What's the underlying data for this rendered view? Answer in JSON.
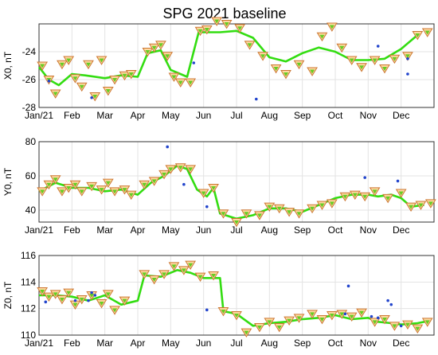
{
  "chart_data": {
    "title": "SPG 2021 baseline",
    "type": "line",
    "x_tick_labels": [
      "Jan/21",
      "Feb",
      "Mar",
      "Apr",
      "May",
      "Jun",
      "Jul",
      "Aug",
      "Sep",
      "Oct",
      "Nov",
      "Dec"
    ],
    "colors": {
      "smooth": "#33dd11",
      "triangle_edge": "#cc7733",
      "triangle_fill": "#ffd9a0",
      "green_fill": "#66cc22",
      "point": "#2244cc"
    },
    "panels": [
      {
        "ylabel": "X0, nT",
        "ylim": [
          -28,
          -22
        ],
        "yticks": [
          -28,
          -26,
          -24
        ],
        "smooth": [
          [
            0,
            -25.1
          ],
          [
            0.3,
            -26.0
          ],
          [
            0.6,
            -26.4
          ],
          [
            1,
            -25.6
          ],
          [
            1.4,
            -25.7
          ],
          [
            2,
            -25.9
          ],
          [
            2.5,
            -25.7
          ],
          [
            3,
            -25.8
          ],
          [
            3.3,
            -24.1
          ],
          [
            3.7,
            -23.9
          ],
          [
            4,
            -25.3
          ],
          [
            4.5,
            -25.8
          ],
          [
            4.85,
            -22.6
          ],
          [
            5.5,
            -22.6
          ],
          [
            6,
            -22.5
          ],
          [
            6.5,
            -23.0
          ],
          [
            7,
            -24.4
          ],
          [
            7.5,
            -24.7
          ],
          [
            8,
            -24.1
          ],
          [
            8.5,
            -23.7
          ],
          [
            9,
            -24.0
          ],
          [
            9.5,
            -24.6
          ],
          [
            10,
            -24.6
          ],
          [
            10.5,
            -24.5
          ],
          [
            11,
            -23.8
          ],
          [
            11.5,
            -22.8
          ]
        ],
        "triangles": [
          [
            0.1,
            -25.0
          ],
          [
            0.3,
            -26.0
          ],
          [
            0.5,
            -27.0
          ],
          [
            0.7,
            -24.9
          ],
          [
            0.9,
            -24.6
          ],
          [
            1.1,
            -25.9
          ],
          [
            1.3,
            -26.5
          ],
          [
            1.5,
            -24.9
          ],
          [
            1.7,
            -27.2
          ],
          [
            1.9,
            -24.6
          ],
          [
            2.1,
            -26.8
          ],
          [
            2.3,
            -26.0
          ],
          [
            2.6,
            -25.7
          ],
          [
            2.8,
            -25.6
          ],
          [
            3.3,
            -24.0
          ],
          [
            3.5,
            -23.7
          ],
          [
            3.7,
            -23.5
          ],
          [
            3.9,
            -24.3
          ],
          [
            4.1,
            -25.8
          ],
          [
            4.3,
            -26.2
          ],
          [
            4.6,
            -26.2
          ],
          [
            4.9,
            -22.5
          ],
          [
            5.1,
            -22.4
          ],
          [
            5.4,
            -21.8
          ],
          [
            5.7,
            -22.0
          ],
          [
            6.1,
            -22.3
          ],
          [
            6.4,
            -23.5
          ],
          [
            6.8,
            -24.3
          ],
          [
            7.2,
            -25.2
          ],
          [
            7.5,
            -25.6
          ],
          [
            7.9,
            -24.9
          ],
          [
            8.3,
            -25.4
          ],
          [
            8.6,
            -22.9
          ],
          [
            8.9,
            -22.2
          ],
          [
            9.2,
            -23.7
          ],
          [
            9.5,
            -24.6
          ],
          [
            9.8,
            -25.1
          ],
          [
            10.2,
            -24.6
          ],
          [
            10.5,
            -25.2
          ],
          [
            10.8,
            -24.5
          ],
          [
            11.2,
            -24.3
          ],
          [
            11.5,
            -22.8
          ],
          [
            11.8,
            -22.6
          ]
        ],
        "points": [
          [
            0.3,
            -26.1
          ],
          [
            1.6,
            -27.3
          ],
          [
            4.7,
            -24.8
          ],
          [
            6.6,
            -27.4
          ],
          [
            10.3,
            -23.6
          ],
          [
            11.2,
            -24.5
          ],
          [
            11.2,
            -25.6
          ]
        ]
      },
      {
        "ylabel": "Y0, nT",
        "ylim": [
          33,
          80
        ],
        "yticks": [
          40,
          60,
          80
        ],
        "smooth": [
          [
            0,
            51
          ],
          [
            0.5,
            56
          ],
          [
            1,
            53
          ],
          [
            1.5,
            53
          ],
          [
            2,
            51
          ],
          [
            2.5,
            52
          ],
          [
            3,
            49
          ],
          [
            3.4,
            56
          ],
          [
            3.8,
            60
          ],
          [
            4.2,
            66
          ],
          [
            4.5,
            64
          ],
          [
            4.8,
            52
          ],
          [
            5.1,
            48
          ],
          [
            5.3,
            53
          ],
          [
            5.5,
            38
          ],
          [
            6,
            35
          ],
          [
            6.5,
            37
          ],
          [
            7,
            41
          ],
          [
            7.5,
            41
          ],
          [
            8,
            39
          ],
          [
            8.5,
            43
          ],
          [
            9,
            47
          ],
          [
            9.5,
            49
          ],
          [
            10,
            49
          ],
          [
            10.3,
            48
          ],
          [
            10.7,
            49
          ],
          [
            11,
            47
          ],
          [
            11.3,
            42
          ],
          [
            11.7,
            43
          ]
        ],
        "triangles": [
          [
            0.1,
            51
          ],
          [
            0.3,
            55
          ],
          [
            0.5,
            58
          ],
          [
            0.7,
            51
          ],
          [
            0.9,
            53
          ],
          [
            1.1,
            55
          ],
          [
            1.3,
            51
          ],
          [
            1.6,
            54
          ],
          [
            1.9,
            52
          ],
          [
            2.1,
            56
          ],
          [
            2.3,
            51
          ],
          [
            2.6,
            52
          ],
          [
            2.8,
            49
          ],
          [
            3.2,
            55
          ],
          [
            3.5,
            57
          ],
          [
            3.8,
            61
          ],
          [
            4.0,
            64
          ],
          [
            4.3,
            65
          ],
          [
            4.6,
            64
          ],
          [
            5.0,
            50
          ],
          [
            5.3,
            53
          ],
          [
            5.6,
            38
          ],
          [
            6.0,
            33
          ],
          [
            6.3,
            38
          ],
          [
            6.7,
            37
          ],
          [
            7.0,
            42
          ],
          [
            7.3,
            41
          ],
          [
            7.6,
            39
          ],
          [
            7.9,
            38
          ],
          [
            8.3,
            41
          ],
          [
            8.6,
            43
          ],
          [
            8.9,
            44
          ],
          [
            9.3,
            48
          ],
          [
            9.6,
            49
          ],
          [
            9.9,
            48
          ],
          [
            10.2,
            51
          ],
          [
            10.6,
            47
          ],
          [
            11.0,
            50
          ],
          [
            11.3,
            42
          ],
          [
            11.6,
            43
          ],
          [
            11.9,
            44
          ]
        ],
        "points": [
          [
            3.9,
            77
          ],
          [
            4.4,
            55
          ],
          [
            5.1,
            42
          ],
          [
            9.9,
            59
          ],
          [
            10.9,
            57
          ]
        ]
      },
      {
        "ylabel": "Z0, nT",
        "ylim": [
          110,
          116
        ],
        "yticks": [
          110,
          112,
          114,
          116
        ],
        "smooth": [
          [
            0,
            113.0
          ],
          [
            0.5,
            113.0
          ],
          [
            1,
            112.9
          ],
          [
            1.5,
            112.6
          ],
          [
            2,
            113.0
          ],
          [
            2.5,
            112.3
          ],
          [
            3,
            112.6
          ],
          [
            3.2,
            114.5
          ],
          [
            3.7,
            114.4
          ],
          [
            4.2,
            114.9
          ],
          [
            4.6,
            114.7
          ],
          [
            5,
            114.3
          ],
          [
            5.5,
            114.3
          ],
          [
            5.6,
            111.8
          ],
          [
            6,
            111.6
          ],
          [
            6.5,
            110.7
          ],
          [
            7,
            110.9
          ],
          [
            7.5,
            111.0
          ],
          [
            8,
            111.2
          ],
          [
            8.5,
            111.3
          ],
          [
            9,
            111.5
          ],
          [
            9.5,
            111.2
          ],
          [
            10,
            111.3
          ],
          [
            10.3,
            111.0
          ],
          [
            10.7,
            110.9
          ],
          [
            11,
            110.8
          ],
          [
            11.5,
            110.9
          ],
          [
            11.9,
            111.1
          ]
        ],
        "triangles": [
          [
            0.1,
            113.3
          ],
          [
            0.3,
            112.9
          ],
          [
            0.5,
            113.1
          ],
          [
            0.7,
            112.7
          ],
          [
            0.9,
            113.2
          ],
          [
            1.1,
            112.3
          ],
          [
            1.3,
            112.7
          ],
          [
            1.6,
            113.0
          ],
          [
            1.9,
            112.4
          ],
          [
            2.1,
            113.1
          ],
          [
            2.3,
            111.9
          ],
          [
            2.6,
            112.6
          ],
          [
            3.2,
            114.6
          ],
          [
            3.5,
            114.2
          ],
          [
            3.8,
            114.6
          ],
          [
            4.1,
            115.2
          ],
          [
            4.4,
            114.9
          ],
          [
            4.6,
            115.3
          ],
          [
            4.9,
            114.4
          ],
          [
            5.3,
            114.5
          ],
          [
            5.6,
            111.8
          ],
          [
            6.0,
            111.5
          ],
          [
            6.3,
            110.2
          ],
          [
            6.7,
            110.6
          ],
          [
            7.0,
            111.0
          ],
          [
            7.3,
            110.6
          ],
          [
            7.6,
            111.1
          ],
          [
            7.9,
            111.3
          ],
          [
            8.3,
            111.6
          ],
          [
            8.6,
            111.2
          ],
          [
            8.9,
            111.5
          ],
          [
            9.2,
            111.6
          ],
          [
            9.5,
            111.4
          ],
          [
            9.8,
            111.7
          ],
          [
            10.2,
            111.0
          ],
          [
            10.5,
            111.2
          ],
          [
            10.8,
            110.7
          ],
          [
            11.2,
            110.8
          ],
          [
            11.5,
            110.5
          ],
          [
            11.8,
            111.0
          ]
        ],
        "points": [
          [
            0.2,
            112.5
          ],
          [
            1.1,
            112.6
          ],
          [
            1.5,
            112.6
          ],
          [
            1.6,
            113.2
          ],
          [
            1.7,
            113.0
          ],
          [
            5.1,
            111.9
          ],
          [
            9.3,
            111.6
          ],
          [
            9.4,
            113.7
          ],
          [
            10.1,
            111.4
          ],
          [
            10.3,
            111.3
          ],
          [
            10.6,
            112.6
          ],
          [
            10.7,
            112.3
          ],
          [
            11.0,
            110.7
          ]
        ]
      }
    ]
  }
}
